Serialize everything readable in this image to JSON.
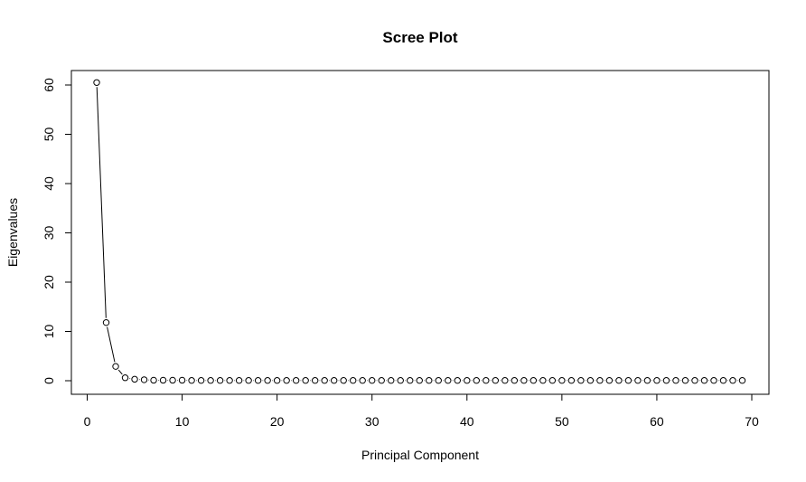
{
  "chart_data": {
    "type": "line",
    "title": "Scree Plot",
    "xlabel": "Principal Component",
    "ylabel": "Eigenvalues",
    "xlim": [
      0,
      70
    ],
    "ylim": [
      0,
      60
    ],
    "x_ticks": [
      0,
      10,
      20,
      30,
      40,
      50,
      60,
      70
    ],
    "y_ticks": [
      0,
      10,
      20,
      30,
      40,
      50,
      60
    ],
    "grid": false,
    "marker": "open-circle",
    "line_color": "#000000",
    "x": [
      1,
      2,
      3,
      4,
      5,
      6,
      7,
      8,
      9,
      10,
      11,
      12,
      13,
      14,
      15,
      16,
      17,
      18,
      19,
      20,
      21,
      22,
      23,
      24,
      25,
      26,
      27,
      28,
      29,
      30,
      31,
      32,
      33,
      34,
      35,
      36,
      37,
      38,
      39,
      40,
      41,
      42,
      43,
      44,
      45,
      46,
      47,
      48,
      49,
      50,
      51,
      52,
      53,
      54,
      55,
      56,
      57,
      58,
      59,
      60,
      61,
      62,
      63,
      64,
      65,
      66,
      67,
      68,
      69
    ],
    "series": [
      {
        "values": [
          60.5,
          11.8,
          2.9,
          0.6,
          0.3,
          0.2,
          0.1,
          0.1,
          0.1,
          0.1,
          0.05,
          0.05,
          0.05,
          0.05,
          0.05,
          0.05,
          0.05,
          0.05,
          0.05,
          0.05,
          0.05,
          0.05,
          0.05,
          0.05,
          0.05,
          0.05,
          0.05,
          0.05,
          0.05,
          0.05,
          0.05,
          0.05,
          0.05,
          0.05,
          0.05,
          0.05,
          0.05,
          0.05,
          0.05,
          0.05,
          0.05,
          0.05,
          0.05,
          0.05,
          0.05,
          0.05,
          0.05,
          0.05,
          0.05,
          0.05,
          0.05,
          0.05,
          0.05,
          0.05,
          0.05,
          0.05,
          0.05,
          0.05,
          0.05,
          0.05,
          0.05,
          0.05,
          0.05,
          0.05,
          0.05,
          0.05,
          0.05,
          0.05,
          0.05
        ]
      }
    ]
  }
}
